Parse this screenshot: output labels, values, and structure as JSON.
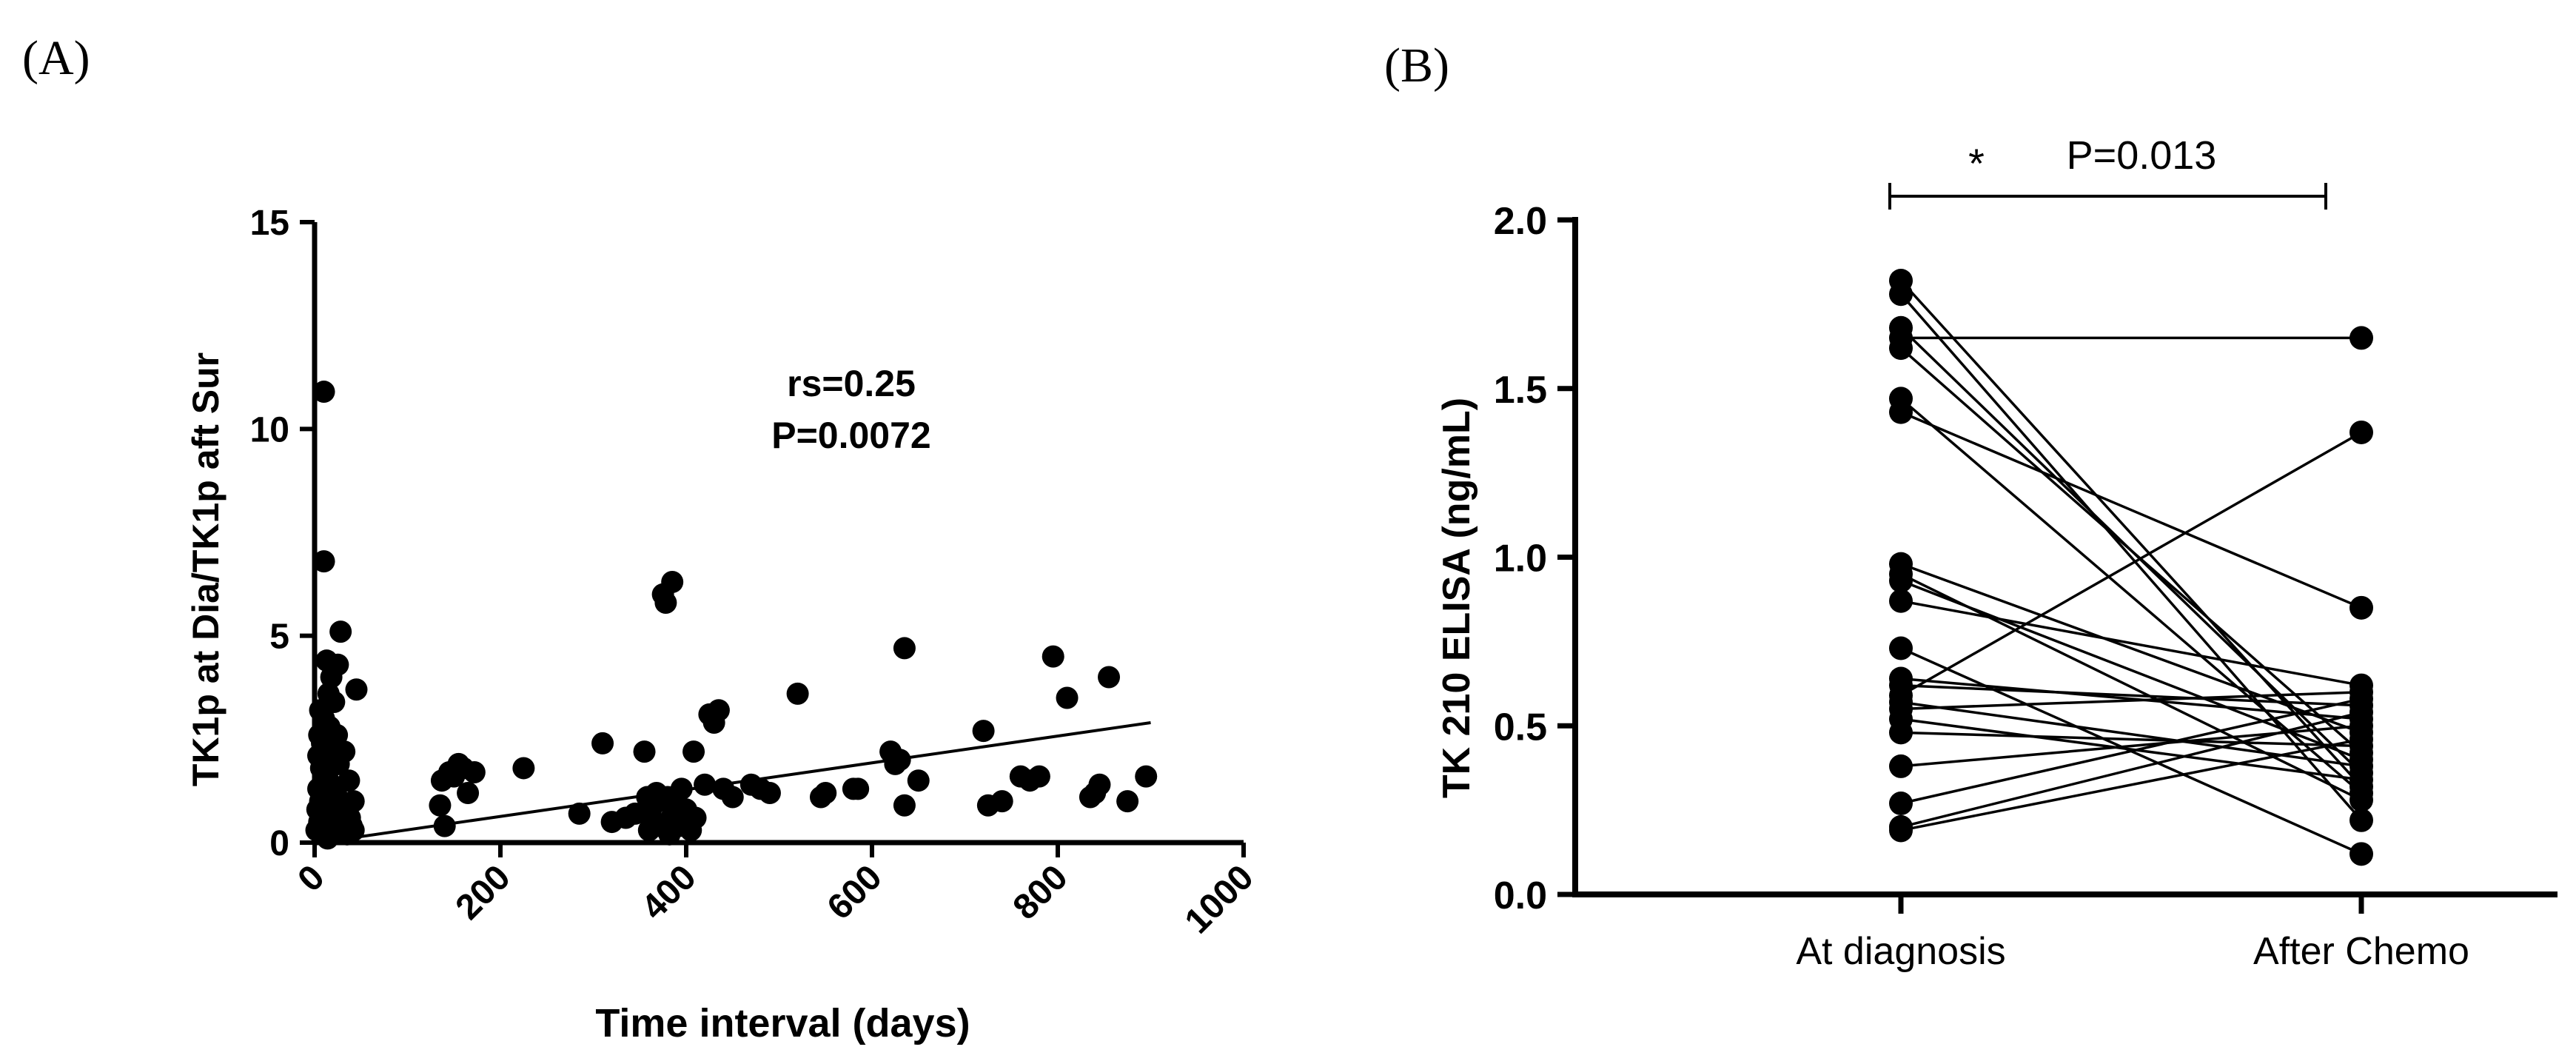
{
  "panels": {
    "a": {
      "label": "(A)"
    },
    "b": {
      "label": "(B)"
    }
  },
  "chart_data": [
    {
      "type": "scatter",
      "panel": "(A)",
      "title": "",
      "xlabel": "Time interval (days)",
      "ylabel": "TK1p at Dia/TK1p aft Sur",
      "xlim": [
        0,
        1000
      ],
      "ylim": [
        0,
        15
      ],
      "xticks": [
        0,
        200,
        400,
        600,
        800,
        1000
      ],
      "yticks": [
        0,
        5,
        10,
        15
      ],
      "grid": false,
      "annotations": [
        "rs=0.25",
        "P=0.0072"
      ],
      "trendline": {
        "x": [
          20,
          900
        ],
        "y": [
          0.05,
          2.9
        ]
      },
      "points": [
        [
          2,
          0.3
        ],
        [
          3,
          0.8
        ],
        [
          4,
          1.3
        ],
        [
          4,
          2.1
        ],
        [
          5,
          0.5
        ],
        [
          5,
          2.6
        ],
        [
          6,
          1.0
        ],
        [
          6,
          3.2
        ],
        [
          7,
          0.2
        ],
        [
          7,
          1.8
        ],
        [
          8,
          0.6
        ],
        [
          8,
          2.4
        ],
        [
          9,
          0.4
        ],
        [
          9,
          1.5
        ],
        [
          10,
          10.9
        ],
        [
          10,
          6.8
        ],
        [
          10,
          0.9
        ],
        [
          10,
          3.0
        ],
        [
          11,
          0.3
        ],
        [
          12,
          2.2
        ],
        [
          12,
          1.1
        ],
        [
          13,
          4.4
        ],
        [
          14,
          0.1
        ],
        [
          14,
          1.7
        ],
        [
          15,
          3.6
        ],
        [
          15,
          0.7
        ],
        [
          16,
          2.8
        ],
        [
          17,
          0.4
        ],
        [
          18,
          1.4
        ],
        [
          18,
          4.0
        ],
        [
          19,
          0.2
        ],
        [
          20,
          2.0
        ],
        [
          20,
          0.9
        ],
        [
          21,
          3.4
        ],
        [
          22,
          0.5
        ],
        [
          23,
          1.2
        ],
        [
          24,
          2.6
        ],
        [
          25,
          4.3
        ],
        [
          25,
          0.3
        ],
        [
          26,
          1.9
        ],
        [
          27,
          0.6
        ],
        [
          28,
          5.1
        ],
        [
          28,
          1.0
        ],
        [
          30,
          0.4
        ],
        [
          32,
          2.2
        ],
        [
          33,
          0.8
        ],
        [
          35,
          0.2
        ],
        [
          37,
          1.5
        ],
        [
          38,
          0.6
        ],
        [
          40,
          0.4
        ],
        [
          42,
          1.0
        ],
        [
          42,
          0.3
        ],
        [
          45,
          3.7
        ],
        [
          135,
          0.9
        ],
        [
          137,
          1.5
        ],
        [
          140,
          0.4
        ],
        [
          145,
          1.7
        ],
        [
          150,
          1.6
        ],
        [
          155,
          1.9
        ],
        [
          160,
          1.8
        ],
        [
          165,
          1.2
        ],
        [
          172,
          1.7
        ],
        [
          225,
          1.8
        ],
        [
          285,
          0.7
        ],
        [
          310,
          2.4
        ],
        [
          320,
          0.5
        ],
        [
          335,
          0.6
        ],
        [
          345,
          0.7
        ],
        [
          355,
          2.2
        ],
        [
          358,
          1.1
        ],
        [
          360,
          0.3
        ],
        [
          362,
          0.8
        ],
        [
          365,
          0.5
        ],
        [
          368,
          1.2
        ],
        [
          370,
          1.0
        ],
        [
          372,
          0.4
        ],
        [
          375,
          6.0
        ],
        [
          378,
          5.8
        ],
        [
          380,
          1.1
        ],
        [
          382,
          0.2
        ],
        [
          384,
          0.6
        ],
        [
          385,
          6.3
        ],
        [
          388,
          1.0
        ],
        [
          390,
          0.9
        ],
        [
          392,
          0.4
        ],
        [
          395,
          1.3
        ],
        [
          398,
          0.6
        ],
        [
          400,
          0.8
        ],
        [
          405,
          0.3
        ],
        [
          408,
          2.2
        ],
        [
          410,
          0.6
        ],
        [
          420,
          1.4
        ],
        [
          425,
          3.1
        ],
        [
          430,
          2.9
        ],
        [
          435,
          3.2
        ],
        [
          440,
          1.3
        ],
        [
          450,
          1.1
        ],
        [
          470,
          1.4
        ],
        [
          480,
          1.3
        ],
        [
          490,
          1.2
        ],
        [
          520,
          3.6
        ],
        [
          545,
          1.1
        ],
        [
          550,
          1.2
        ],
        [
          580,
          1.3
        ],
        [
          585,
          1.3
        ],
        [
          620,
          2.2
        ],
        [
          625,
          1.9
        ],
        [
          630,
          2.0
        ],
        [
          635,
          0.9
        ],
        [
          635,
          4.7
        ],
        [
          650,
          1.5
        ],
        [
          720,
          2.7
        ],
        [
          725,
          0.9
        ],
        [
          740,
          1.0
        ],
        [
          760,
          1.6
        ],
        [
          770,
          1.5
        ],
        [
          780,
          1.6
        ],
        [
          795,
          4.5
        ],
        [
          810,
          3.5
        ],
        [
          835,
          1.1
        ],
        [
          840,
          1.2
        ],
        [
          845,
          1.4
        ],
        [
          855,
          4.0
        ],
        [
          875,
          1.0
        ],
        [
          895,
          1.6
        ]
      ]
    },
    {
      "type": "line",
      "panel": "(B)",
      "title": "",
      "xlabel": "",
      "ylabel": "TK 210 ELISA (ng/mL)",
      "categories": [
        "At diagnosis",
        "After Chemo"
      ],
      "ylim": [
        0,
        2.0
      ],
      "yticks": [
        "0.0",
        "0.5",
        "1.0",
        "1.5",
        "2.0"
      ],
      "grid": false,
      "significance": {
        "star": "*",
        "p_value": "P=0.013"
      },
      "pairs": [
        [
          1.82,
          0.32
        ],
        [
          1.78,
          0.22
        ],
        [
          1.68,
          0.36
        ],
        [
          1.65,
          1.65
        ],
        [
          1.62,
          0.42
        ],
        [
          1.47,
          0.3
        ],
        [
          1.43,
          0.85
        ],
        [
          0.98,
          0.48
        ],
        [
          0.95,
          0.28
        ],
        [
          0.93,
          0.4
        ],
        [
          0.87,
          0.62
        ],
        [
          0.73,
          0.12
        ],
        [
          0.64,
          0.52
        ],
        [
          0.62,
          0.56
        ],
        [
          0.59,
          1.37
        ],
        [
          0.57,
          0.38
        ],
        [
          0.55,
          0.6
        ],
        [
          0.52,
          0.34
        ],
        [
          0.48,
          0.44
        ],
        [
          0.38,
          0.5
        ],
        [
          0.27,
          0.58
        ],
        [
          0.2,
          0.54
        ],
        [
          0.19,
          0.46
        ]
      ]
    }
  ]
}
